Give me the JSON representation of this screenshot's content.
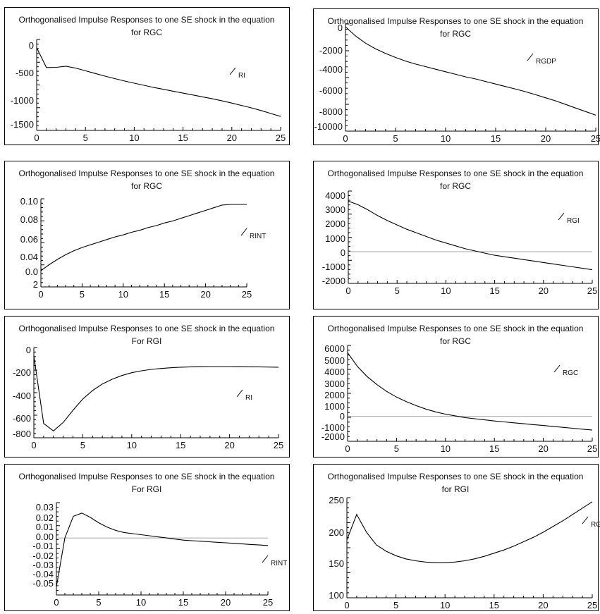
{
  "chart_data": [
    {
      "type": "line",
      "title": "Orthogonalised Impulse Responses to one SE shock in the equation",
      "subtitle": "for RGC",
      "legend": "RI",
      "x": [
        0,
        1,
        2,
        3,
        4,
        5,
        6,
        7,
        8,
        9,
        10,
        11,
        12,
        13,
        14,
        15,
        16,
        17,
        18,
        19,
        20,
        21,
        22,
        23,
        24,
        25
      ],
      "y": [
        0,
        -370,
        -365,
        -345,
        -380,
        -430,
        -480,
        -530,
        -575,
        -620,
        -660,
        -700,
        -740,
        -775,
        -810,
        -845,
        -880,
        -915,
        -950,
        -990,
        -1030,
        -1075,
        -1120,
        -1170,
        -1225,
        -1280
      ],
      "xticks": [
        "0",
        "5",
        "10",
        "15",
        "20",
        "25"
      ],
      "yticks": [
        "0",
        "-500",
        "-1000",
        "-1500"
      ],
      "xlim": [
        0,
        25
      ],
      "ylim": [
        -1500,
        100
      ]
    },
    {
      "type": "line",
      "title": "Orthogonalised Impulse Responses to one SE shock in the equation",
      "subtitle": "for RGC",
      "legend": "RGDP",
      "x": [
        0,
        1,
        2,
        3,
        4,
        5,
        6,
        7,
        8,
        9,
        10,
        11,
        12,
        13,
        14,
        15,
        16,
        17,
        18,
        19,
        20,
        21,
        22,
        23,
        24,
        25
      ],
      "y": [
        0,
        -900,
        -1600,
        -2150,
        -2600,
        -3000,
        -3350,
        -3650,
        -3900,
        -4150,
        -4400,
        -4650,
        -4900,
        -5100,
        -5350,
        -5600,
        -5850,
        -6100,
        -6350,
        -6650,
        -6950,
        -7250,
        -7600,
        -7950,
        -8300,
        -8650
      ],
      "xticks": [
        "0",
        "5",
        "10",
        "15",
        "20",
        "25"
      ],
      "yticks": [
        "0",
        "-2000",
        "-4000",
        "-6000",
        "-8000",
        "-10000"
      ],
      "xlim": [
        0,
        25
      ],
      "ylim": [
        -10000,
        0
      ]
    },
    {
      "type": "line",
      "title": "Orthogonalised Impulse Responses to one SE shock in the equation",
      "subtitle": "for RGC",
      "legend": "RINT",
      "x": [
        0,
        1,
        2,
        3,
        4,
        5,
        6,
        7,
        8,
        9,
        10,
        11,
        12,
        13,
        14,
        15,
        16,
        17,
        18,
        19,
        20,
        21,
        22,
        23,
        24,
        25
      ],
      "y": [
        0.0,
        0.009,
        0.017,
        0.024,
        0.03,
        0.035,
        0.039,
        0.043,
        0.047,
        0.051,
        0.054,
        0.058,
        0.061,
        0.065,
        0.068,
        0.072,
        0.075,
        0.079,
        0.083,
        0.087,
        0.091,
        0.095,
        0.099,
        0.103,
        0.107,
        0.112
      ],
      "xticks": [
        "0",
        "5",
        "10",
        "15",
        "20",
        "25"
      ],
      "yticks": [
        "0.10",
        "0.08",
        "0.06",
        "0.04",
        "0.0",
        "2"
      ],
      "xlim": [
        0,
        25
      ],
      "ylim": [
        0,
        0.1
      ]
    },
    {
      "type": "line",
      "title": "Orthogonalised Impulse Responses to one SE shock in the equation",
      "subtitle": "for RGC",
      "legend": "RGI",
      "x": [
        0,
        1,
        2,
        3,
        4,
        5,
        6,
        7,
        8,
        9,
        10,
        11,
        12,
        13,
        14,
        15,
        16,
        17,
        18,
        19,
        20,
        21,
        22,
        23,
        24,
        25
      ],
      "y": [
        3500,
        3250,
        2900,
        2500,
        2150,
        1850,
        1550,
        1300,
        1050,
        800,
        600,
        400,
        200,
        50,
        -100,
        -250,
        -350,
        -450,
        -550,
        -650,
        -750,
        -850,
        -950,
        -1050,
        -1150,
        -1250
      ],
      "xticks": [
        "0",
        "5",
        "10",
        "15",
        "20",
        "25"
      ],
      "yticks": [
        "4000",
        "3000",
        "2000",
        "1000",
        "0",
        "-1000",
        "-2000"
      ],
      "xlim": [
        0,
        25
      ],
      "ylim": [
        -2000,
        4000
      ]
    },
    {
      "type": "line",
      "title": "Orthogonalised Impulse Responses to one SE shock in the equation",
      "subtitle": "For RGI",
      "legend": "RI",
      "x": [
        0,
        1,
        2,
        3,
        4,
        5,
        6,
        7,
        8,
        9,
        10,
        11,
        12,
        13,
        14,
        15,
        16,
        17,
        18,
        19,
        20,
        21,
        22,
        23,
        24,
        25
      ],
      "y": [
        0,
        -720,
        -800,
        -710,
        -580,
        -460,
        -370,
        -300,
        -250,
        -210,
        -180,
        -160,
        -145,
        -135,
        -128,
        -122,
        -118,
        -116,
        -115,
        -115,
        -115,
        -116,
        -117,
        -118,
        -120,
        -122
      ],
      "xticks": [
        "0",
        "5",
        "10",
        "15",
        "20",
        "25"
      ],
      "yticks": [
        "0",
        "-200",
        "-400",
        "-600",
        "-800"
      ],
      "xlim": [
        0,
        25
      ],
      "ylim": [
        -850,
        50
      ]
    },
    {
      "type": "line",
      "title": "Orthogonalised Impulse Responses to one SE shock in the equation",
      "subtitle": "for RGC",
      "legend": "RGC",
      "x": [
        0,
        1,
        2,
        3,
        4,
        5,
        6,
        7,
        8,
        9,
        10,
        11,
        12,
        13,
        14,
        15,
        16,
        17,
        18,
        19,
        20,
        21,
        22,
        23,
        24,
        25
      ],
      "y": [
        5600,
        4400,
        3500,
        2800,
        2200,
        1700,
        1300,
        950,
        650,
        400,
        200,
        50,
        -100,
        -200,
        -300,
        -400,
        -480,
        -560,
        -640,
        -720,
        -800,
        -880,
        -960,
        -1040,
        -1120,
        -1200
      ],
      "xticks": [
        "0",
        "5",
        "10",
        "15",
        "20",
        "25"
      ],
      "yticks": [
        "6000",
        "5000",
        "4000",
        "3000",
        "2000",
        "1000",
        "0",
        "-1000",
        "-2000"
      ],
      "xlim": [
        0,
        25
      ],
      "ylim": [
        -2000,
        6000
      ]
    },
    {
      "type": "line",
      "title": "Orthogonalised Impulse Responses to one SE shock in the equation",
      "subtitle": "For RGI",
      "legend": "RINT",
      "x": [
        0,
        1,
        2,
        3,
        4,
        5,
        6,
        7,
        8,
        9,
        10,
        11,
        12,
        13,
        14,
        15,
        16,
        17,
        18,
        19,
        20,
        21,
        22,
        23,
        24,
        25
      ],
      "y": [
        -0.045,
        0.0,
        0.02,
        0.023,
        0.019,
        0.014,
        0.01,
        0.007,
        0.005,
        0.004,
        0.003,
        0.002,
        0.001,
        0.0,
        -0.001,
        -0.002,
        -0.0025,
        -0.003,
        -0.0035,
        -0.004,
        -0.0045,
        -0.005,
        -0.0055,
        -0.006,
        -0.0065,
        -0.007
      ],
      "xticks": [
        "0",
        "5",
        "10",
        "15",
        "20",
        "25"
      ],
      "yticks": [
        "0.03",
        "0.02",
        "0.01",
        "0.00",
        "-0.01",
        "-0.02",
        "-0.03",
        "-0.04",
        "-0.05"
      ],
      "xlim": [
        0,
        25
      ],
      "ylim": [
        -0.05,
        0.03
      ]
    },
    {
      "type": "line",
      "title": "Orthogonalised Impulse Responses to one SE shock in the equation",
      "subtitle": "for RGI",
      "legend": "RGDP",
      "x": [
        0,
        1,
        2,
        3,
        4,
        5,
        6,
        7,
        8,
        9,
        10,
        11,
        12,
        13,
        14,
        15,
        16,
        17,
        18,
        19,
        20,
        21,
        22,
        23,
        24,
        25
      ],
      "y": [
        188,
        228,
        200,
        180,
        170,
        163,
        158,
        155,
        153,
        152,
        152,
        153,
        155,
        158,
        162,
        167,
        172,
        178,
        185,
        192,
        200,
        209,
        218,
        228,
        238,
        248
      ],
      "xticks": [
        "0",
        "5",
        "10",
        "15",
        "20",
        "25"
      ],
      "yticks": [
        "250",
        "200",
        "150",
        "100"
      ],
      "xlim": [
        0,
        25
      ],
      "ylim": [
        100,
        250
      ]
    }
  ]
}
